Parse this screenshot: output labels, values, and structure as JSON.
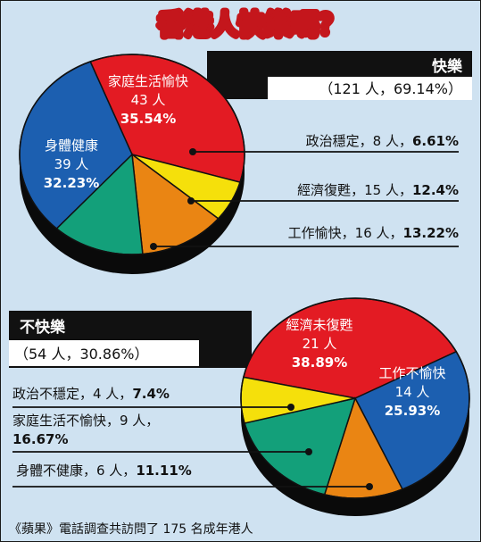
{
  "title": "香港人快樂嗎？",
  "footer": "《蘋果》電話調查共訪問了 175 名成年港人",
  "chart_data": [
    {
      "type": "pie",
      "header": {
        "label": "快樂",
        "summary": "（121 人，69.14%）"
      },
      "slices": [
        {
          "label": "家庭生活愉快",
          "count": "43 人",
          "percent": "35.54%",
          "value": 35.54,
          "color": "#e31b23"
        },
        {
          "label": "政治穩定",
          "count": "8 人",
          "percent": "6.61%",
          "value": 6.61,
          "color": "#f5e00b"
        },
        {
          "label": "經濟復甦",
          "count": "15 人",
          "percent": "12.4%",
          "value": 12.4,
          "color": "#ea8513"
        },
        {
          "label": "工作愉快",
          "count": "16 人",
          "percent": "13.22%",
          "value": 13.22,
          "color": "#13a07a"
        },
        {
          "label": "身體健康",
          "count": "39 人",
          "percent": "32.23%",
          "value": 32.23,
          "color": "#1c5fb0"
        }
      ]
    },
    {
      "type": "pie",
      "header": {
        "label": "不快樂",
        "summary": "（54 人，30.86%）"
      },
      "slices": [
        {
          "label": "經濟未復甦",
          "count": "21 人",
          "percent": "38.89%",
          "value": 38.89,
          "color": "#e31b23"
        },
        {
          "label": "工作不愉快",
          "count": "14 人",
          "percent": "25.93%",
          "value": 25.93,
          "color": "#1c5fb0"
        },
        {
          "label": "身體不健康",
          "count": "6 人",
          "percent": "11.11%",
          "value": 11.11,
          "color": "#ea8513"
        },
        {
          "label": "家庭生活不愉快",
          "count": "9 人",
          "percent": "16.67%",
          "value": 16.67,
          "color": "#13a07a"
        },
        {
          "label": "政治不穩定",
          "count": "4 人",
          "percent": "7.4%",
          "value": 7.4,
          "color": "#f5e00b"
        }
      ]
    }
  ]
}
